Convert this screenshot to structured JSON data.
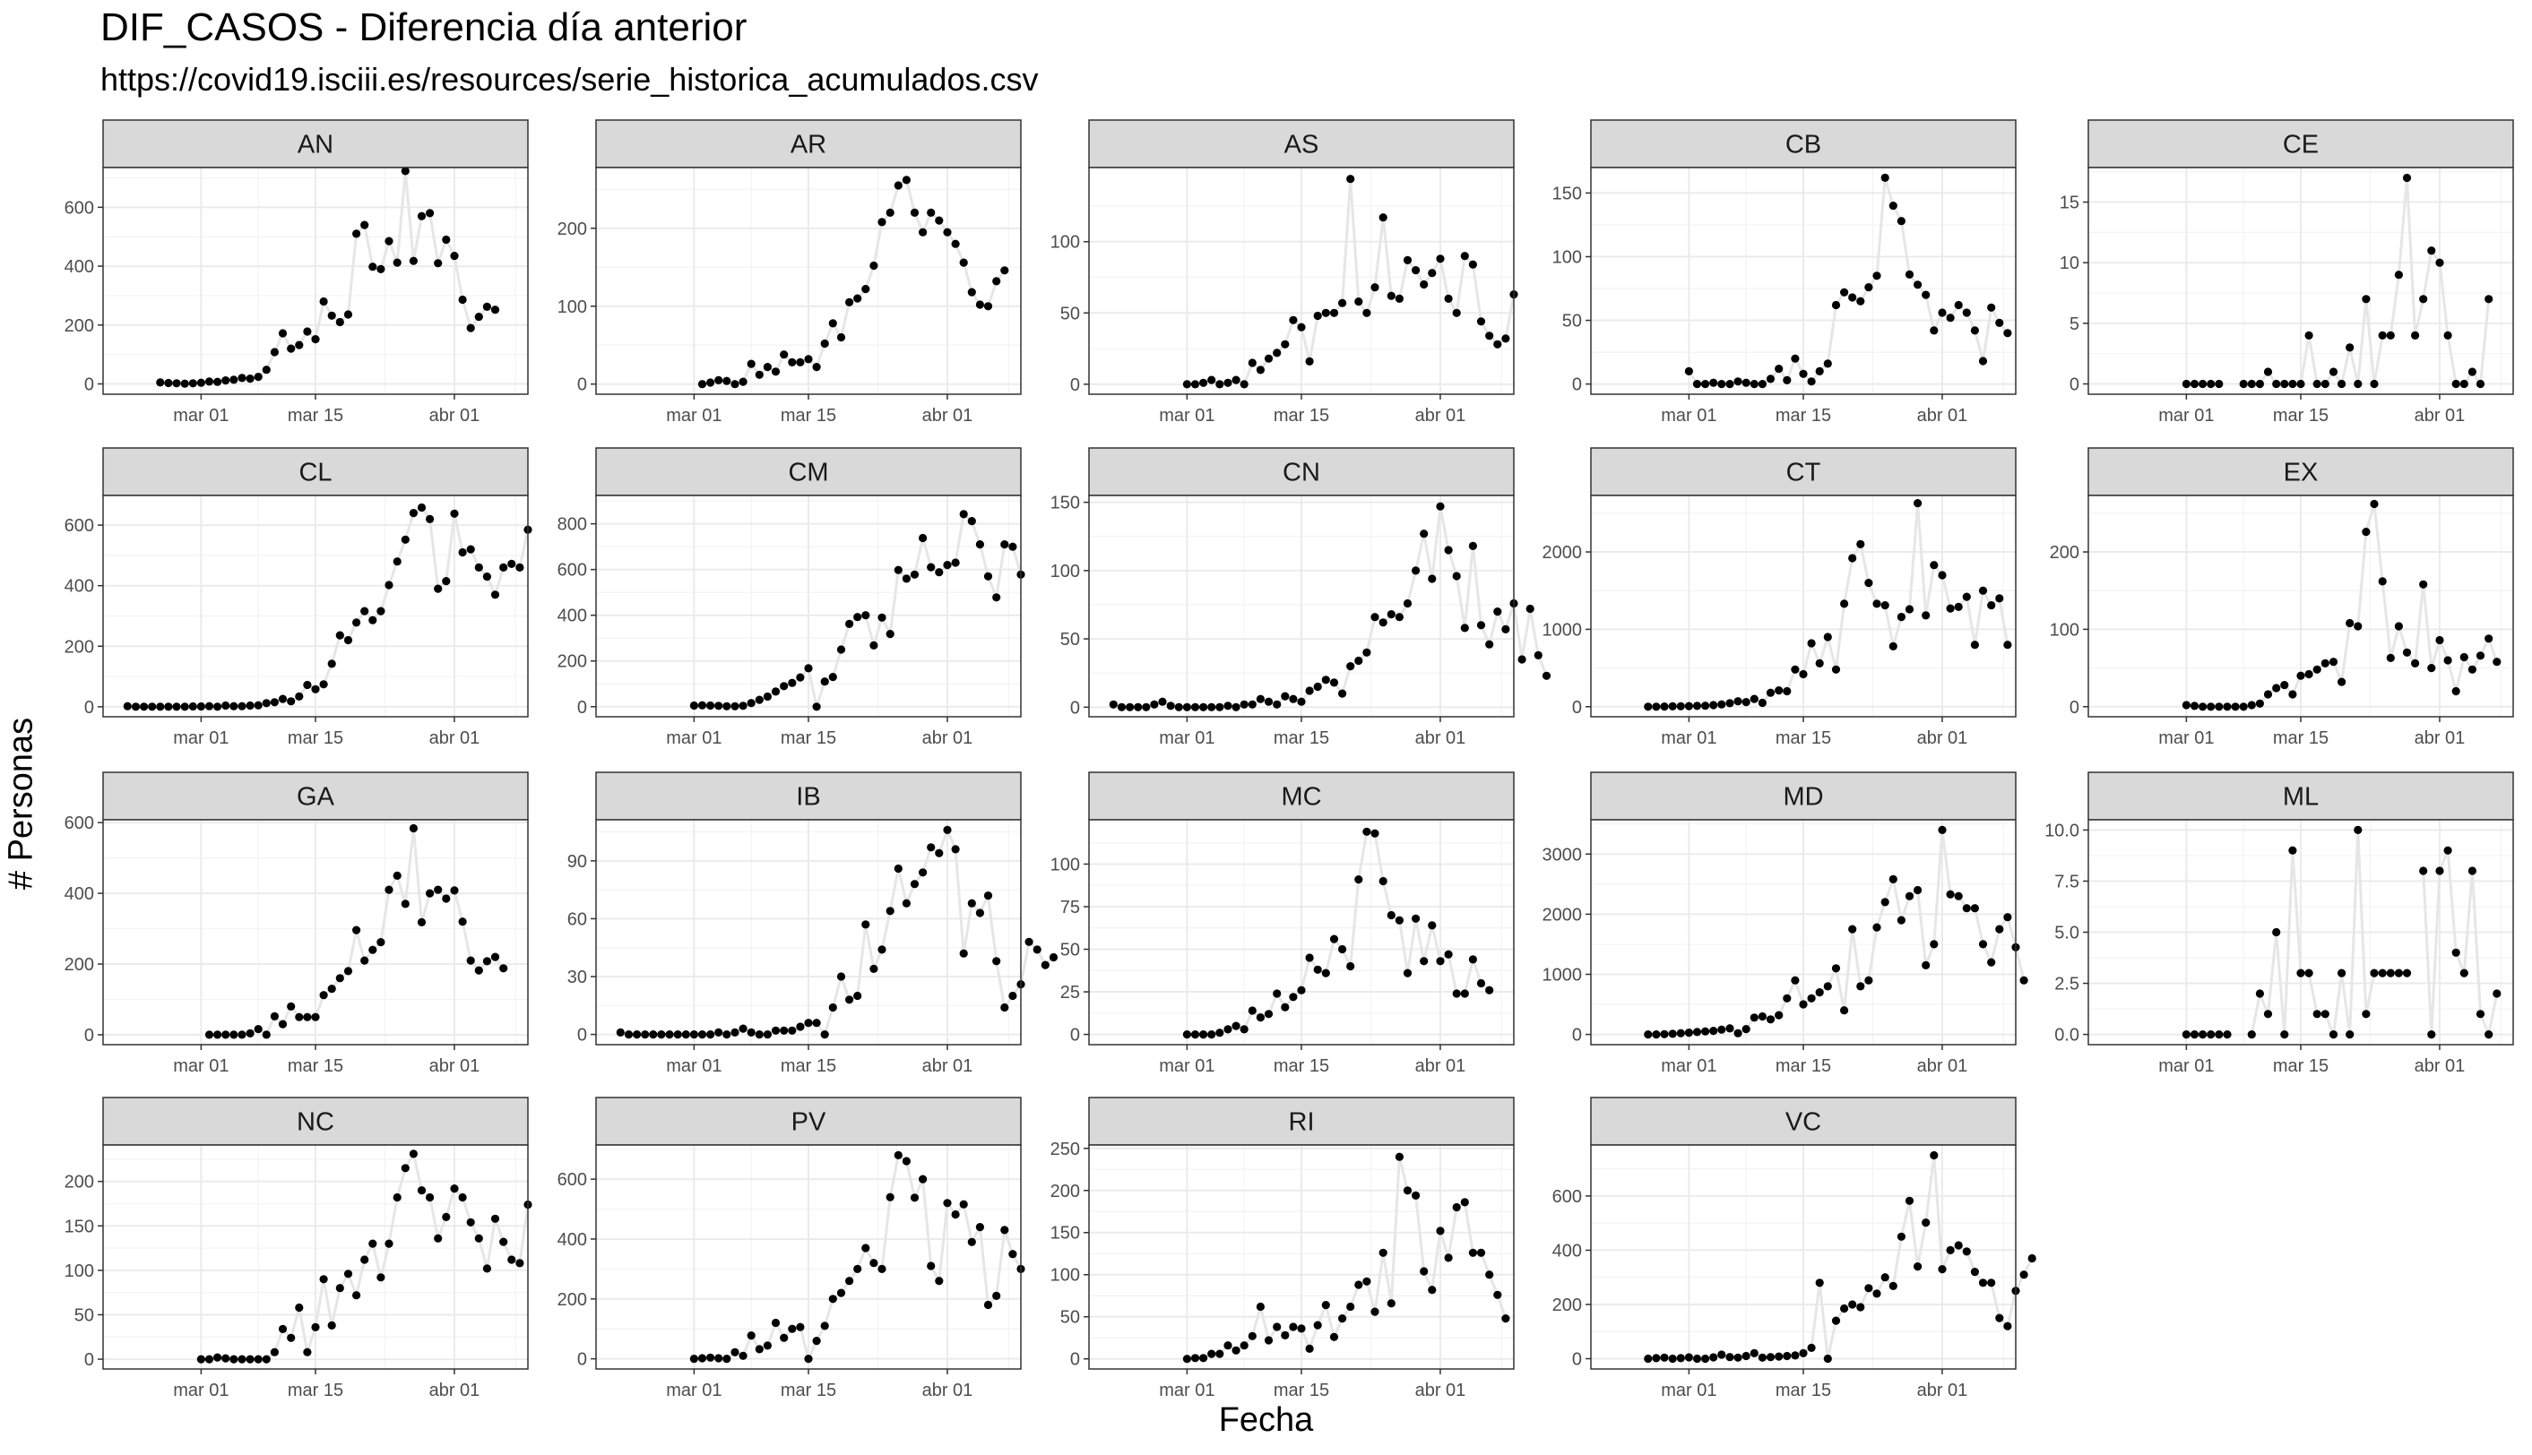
{
  "chart_data": {
    "type": "scatter",
    "title": "DIF_CASOS - Diferencia día anterior",
    "subtitle": "https://covid19.isciii.es/resources/serie_historica_acumulados.csv",
    "xlabel": "Fecha",
    "ylabel": "# Personas",
    "x_ticks": [
      {
        "label": "mar 01",
        "day": 1
      },
      {
        "label": "mar 15",
        "day": 15
      },
      {
        "label": "abr 01",
        "day": 32
      }
    ],
    "x_range": [
      "2020-02-18",
      "2020-04-10"
    ],
    "grid": true,
    "legend": "none",
    "colors": {
      "points": "#000000",
      "line": "#e6e6e6",
      "strip": "#d9d9d9",
      "grid": "#ebebeb",
      "border": "#333333"
    },
    "panels": [
      {
        "name": "AN",
        "start_day": -4,
        "ylim": [
          -35,
          735
        ],
        "yticks": [
          0,
          200,
          400,
          600
        ],
        "values": [
          5,
          3,
          2,
          1,
          2,
          4,
          8,
          7,
          12,
          14,
          20,
          18,
          24,
          48,
          108,
          172,
          120,
          132,
          178,
          152,
          280,
          232,
          210,
          236,
          510,
          540,
          398,
          390,
          485,
          412,
          723,
          418,
          570,
          580,
          410,
          490,
          435,
          286,
          190,
          228,
          262,
          252
        ]
      },
      {
        "name": "AR",
        "start_day": 2,
        "ylim": [
          -13,
          278
        ],
        "yticks": [
          0,
          100,
          200
        ],
        "values": [
          0,
          2,
          5,
          4,
          0,
          3,
          26,
          12,
          22,
          16,
          38,
          28,
          28,
          32,
          22,
          52,
          78,
          60,
          105,
          110,
          122,
          152,
          208,
          220,
          255,
          262,
          220,
          195,
          220,
          210,
          195,
          180,
          156,
          118,
          102,
          100,
          132,
          146
        ]
      },
      {
        "name": "AS",
        "start_day": 1,
        "ylim": [
          -7,
          152
        ],
        "yticks": [
          0,
          50,
          100
        ],
        "values": [
          0,
          0,
          1,
          3,
          0,
          1,
          3,
          0,
          15,
          10,
          18,
          22,
          28,
          45,
          40,
          16,
          48,
          50,
          50,
          57,
          144,
          58,
          50,
          68,
          117,
          62,
          60,
          87,
          80,
          70,
          78,
          88,
          60,
          50,
          90,
          84,
          44,
          34,
          28,
          32,
          63
        ]
      },
      {
        "name": "CB",
        "start_day": 1,
        "ylim": [
          -8,
          170
        ],
        "yticks": [
          0,
          50,
          100,
          150
        ],
        "values": [
          10,
          0,
          0,
          1,
          0,
          0,
          2,
          1,
          0,
          0,
          4,
          12,
          3,
          20,
          8,
          2,
          10,
          16,
          62,
          72,
          68,
          65,
          76,
          85,
          162,
          140,
          128,
          86,
          78,
          70,
          42,
          56,
          52,
          62,
          56,
          42,
          18,
          60,
          48,
          40
        ]
      },
      {
        "name": "CE",
        "start_day": 1,
        "ylim": [
          -0.85,
          17.85
        ],
        "yticks": [
          0,
          5,
          10,
          15
        ],
        "values": [
          0,
          0,
          0,
          0,
          0,
          null,
          null,
          0,
          0,
          0,
          1,
          0,
          0,
          0,
          0,
          4,
          0,
          0,
          1,
          0,
          3,
          0,
          7,
          0,
          4,
          4,
          9,
          17,
          4,
          7,
          11,
          10,
          4,
          0,
          0,
          1,
          0,
          7
        ]
      },
      {
        "name": "CL",
        "start_day": -8,
        "ylim": [
          -33,
          698
        ],
        "yticks": [
          0,
          200,
          400,
          600
        ],
        "values": [
          2,
          0,
          0,
          0,
          0,
          0,
          0,
          0,
          1,
          1,
          2,
          0,
          4,
          2,
          2,
          4,
          5,
          12,
          15,
          26,
          18,
          34,
          72,
          58,
          74,
          142,
          236,
          220,
          278,
          316,
          286,
          316,
          402,
          480,
          552,
          640,
          658,
          620,
          390,
          415,
          638,
          510,
          520,
          460,
          430,
          370,
          460,
          472,
          460,
          585
        ]
      },
      {
        "name": "CM",
        "start_day": 1,
        "ylim": [
          -44,
          924
        ],
        "yticks": [
          0,
          200,
          400,
          600,
          800
        ],
        "values": [
          5,
          6,
          5,
          4,
          2,
          2,
          4,
          16,
          30,
          44,
          66,
          90,
          104,
          128,
          168,
          0,
          110,
          130,
          250,
          362,
          392,
          400,
          268,
          390,
          318,
          598,
          560,
          578,
          738,
          610,
          588,
          620,
          630,
          842,
          812,
          710,
          570,
          478,
          710,
          700,
          578
        ]
      },
      {
        "name": "CN",
        "start_day": -8,
        "ylim": [
          -7,
          155
        ],
        "yticks": [
          0,
          50,
          100,
          150
        ],
        "values": [
          2,
          0,
          0,
          0,
          0,
          2,
          4,
          1,
          0,
          0,
          0,
          0,
          0,
          0,
          1,
          0,
          2,
          2,
          6,
          4,
          2,
          8,
          6,
          4,
          12,
          15,
          20,
          18,
          10,
          30,
          34,
          40,
          66,
          62,
          68,
          66,
          76,
          100,
          127,
          94,
          147,
          115,
          96,
          58,
          118,
          60,
          46,
          70,
          57,
          76,
          35,
          72,
          38,
          23
        ]
      },
      {
        "name": "CT",
        "start_day": -4,
        "ylim": [
          -130,
          2730
        ],
        "yticks": [
          0,
          1000,
          2000
        ],
        "values": [
          0,
          0,
          2,
          4,
          6,
          8,
          10,
          12,
          20,
          30,
          45,
          70,
          60,
          100,
          50,
          180,
          210,
          200,
          480,
          420,
          820,
          560,
          900,
          480,
          1330,
          1920,
          2100,
          1600,
          1330,
          1310,
          780,
          1160,
          1260,
          2630,
          1180,
          1830,
          1700,
          1270,
          1290,
          1420,
          800,
          1500,
          1310,
          1400,
          800
        ]
      },
      {
        "name": "EX",
        "start_day": 1,
        "ylim": [
          -13,
          273
        ],
        "yticks": [
          0,
          100,
          200
        ],
        "values": [
          2,
          1,
          0,
          0,
          0,
          0,
          0,
          0,
          2,
          4,
          16,
          24,
          28,
          16,
          40,
          42,
          48,
          56,
          58,
          32,
          108,
          104,
          226,
          262,
          162,
          63,
          104,
          70,
          56,
          158,
          50,
          86,
          60,
          20,
          64,
          48,
          66,
          88,
          58
        ]
      },
      {
        "name": "GA",
        "start_day": 2,
        "ylim": [
          -28,
          608
        ],
        "yticks": [
          0,
          200,
          400,
          600
        ],
        "values": [
          0,
          0,
          0,
          0,
          0,
          4,
          16,
          0,
          52,
          30,
          80,
          50,
          50,
          50,
          112,
          130,
          160,
          180,
          296,
          210,
          240,
          262,
          410,
          450,
          370,
          584,
          318,
          400,
          410,
          385,
          408,
          320,
          210,
          182,
          208,
          220,
          188
        ]
      },
      {
        "name": "IB",
        "start_day": -8,
        "ylim": [
          -5.3,
          111.3
        ],
        "yticks": [
          0,
          30,
          60,
          90
        ],
        "values": [
          1,
          0,
          0,
          0,
          0,
          0,
          0,
          0,
          0,
          0,
          0,
          0,
          1,
          0,
          1,
          3,
          1,
          0,
          0,
          2,
          2,
          2,
          4,
          6,
          6,
          0,
          14,
          30,
          18,
          20,
          57,
          34,
          44,
          64,
          86,
          68,
          78,
          84,
          97,
          94,
          106,
          96,
          42,
          68,
          63,
          72,
          38,
          14,
          20,
          26,
          48,
          44,
          36,
          40
        ]
      },
      {
        "name": "MC",
        "start_day": 1,
        "ylim": [
          -6,
          126
        ],
        "yticks": [
          0,
          25,
          50,
          75,
          100
        ],
        "values": [
          0,
          0,
          0,
          0,
          1,
          3,
          5,
          3,
          14,
          10,
          12,
          24,
          16,
          22,
          26,
          45,
          38,
          36,
          56,
          50,
          40,
          91,
          119,
          118,
          90,
          70,
          67,
          36,
          68,
          43,
          64,
          43,
          47,
          24,
          24,
          44,
          30,
          26
        ]
      },
      {
        "name": "MD",
        "start_day": -4,
        "ylim": [
          -170,
          3570
        ],
        "yticks": [
          0,
          1000,
          2000,
          3000
        ],
        "values": [
          0,
          0,
          5,
          10,
          20,
          30,
          40,
          50,
          60,
          80,
          100,
          20,
          90,
          280,
          300,
          250,
          320,
          600,
          900,
          500,
          600,
          700,
          800,
          1100,
          400,
          1750,
          800,
          900,
          1780,
          2200,
          2580,
          1900,
          2300,
          2400,
          1150,
          1500,
          3400,
          2330,
          2300,
          2100,
          2100,
          1500,
          1200,
          1750,
          1950,
          1450,
          900
        ]
      },
      {
        "name": "ML",
        "start_day": 1,
        "ylim": [
          -0.5,
          10.5
        ],
        "yticks": [
          0.0,
          2.5,
          5.0,
          7.5,
          10.0
        ],
        "values": [
          0,
          0,
          0,
          0,
          0,
          0,
          null,
          null,
          0,
          2,
          1,
          5,
          0,
          9,
          3,
          3,
          1,
          1,
          0,
          3,
          0,
          10,
          1,
          3,
          3,
          3,
          3,
          3,
          null,
          8,
          0,
          8,
          9,
          4,
          3,
          8,
          1,
          0,
          2
        ]
      },
      {
        "name": "NC",
        "start_day": 1,
        "ylim": [
          -11,
          241
        ],
        "yticks": [
          0,
          50,
          100,
          150,
          200
        ],
        "values": [
          0,
          0,
          2,
          1,
          0,
          0,
          0,
          0,
          0,
          8,
          34,
          24,
          58,
          8,
          36,
          90,
          38,
          80,
          96,
          72,
          112,
          130,
          92,
          130,
          182,
          215,
          231,
          190,
          182,
          136,
          160,
          192,
          182,
          154,
          136,
          102,
          158,
          132,
          112,
          108,
          174
        ]
      },
      {
        "name": "PV",
        "start_day": 1,
        "ylim": [
          -34,
          714
        ],
        "yticks": [
          0,
          200,
          400,
          600
        ],
        "values": [
          0,
          2,
          4,
          2,
          0,
          22,
          10,
          78,
          32,
          44,
          120,
          70,
          100,
          106,
          0,
          60,
          110,
          200,
          220,
          260,
          300,
          370,
          320,
          300,
          540,
          680,
          660,
          538,
          600,
          310,
          260,
          520,
          482,
          516,
          390,
          440,
          180,
          210,
          430,
          350,
          300
        ]
      },
      {
        "name": "RI",
        "start_day": 1,
        "ylim": [
          -12,
          254
        ],
        "yticks": [
          0,
          50,
          100,
          150,
          200,
          250
        ],
        "values": [
          0,
          1,
          1,
          6,
          6,
          16,
          10,
          16,
          27,
          62,
          22,
          38,
          28,
          38,
          36,
          12,
          40,
          64,
          26,
          48,
          62,
          88,
          92,
          56,
          126,
          66,
          240,
          200,
          194,
          104,
          82,
          152,
          120,
          180,
          186,
          126,
          126,
          100,
          76,
          48
        ]
      },
      {
        "name": "VC",
        "start_day": -4,
        "ylim": [
          -38,
          788
        ],
        "yticks": [
          0,
          200,
          400,
          600
        ],
        "values": [
          0,
          2,
          4,
          0,
          2,
          5,
          0,
          0,
          5,
          15,
          6,
          4,
          10,
          20,
          4,
          6,
          8,
          10,
          12,
          20,
          40,
          280,
          0,
          140,
          185,
          200,
          190,
          260,
          240,
          300,
          268,
          450,
          582,
          340,
          502,
          750,
          330,
          400,
          418,
          395,
          320,
          280,
          280,
          150,
          120,
          250,
          310,
          370
        ]
      }
    ]
  }
}
